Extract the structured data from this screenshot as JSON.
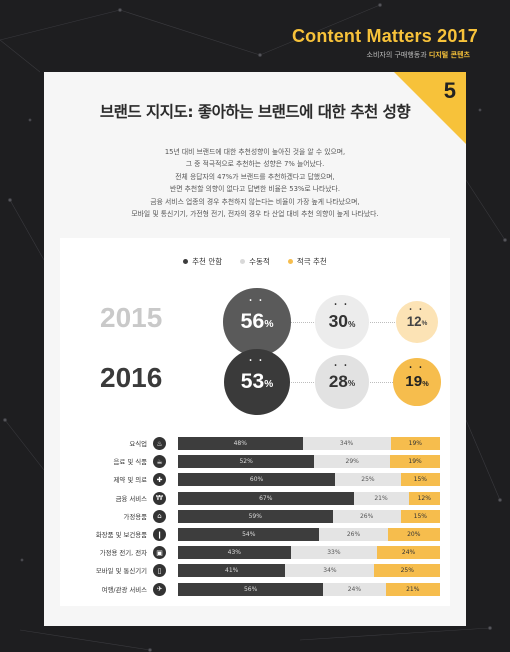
{
  "header": {
    "title": "Content Matters 2017",
    "subtitle_prefix": "소비자의 구매행동과",
    "subtitle_highlight": "디지털 콘텐츠"
  },
  "card": {
    "section_number": "5",
    "title": "브랜드 지지도: 좋아하는 브랜드에 대한 추천 성향",
    "description": [
      "15년 대비 브랜드에 대한 추천성향이 높아진 것을 알 수 있으며,",
      "그 중 적극적으로 추천하는 성향은 7% 늘어났다.",
      "전체 응답자의 47%가 브랜드를 추천하겠다고 답했으며,",
      "반면 추천할 의향이 없다고 답변한 비율은 53%로 나타났다.",
      "금융 서비스 업종의 경우 추천하지 않는다는 비율이 가장 높게 나타났으며,",
      "모바일 및 통신기기, 가전형 전기, 전자의 경우 타 산업 대비 추천 의향이 높게 나타났다."
    ]
  },
  "colors": {
    "dark": "#3d3d3d",
    "grey": "#e4e4e4",
    "yellow": "#f6bd4d",
    "background": "#1e1e20"
  },
  "chart_data": [
    {
      "type": "bubble",
      "legend": [
        "추천 안함",
        "수동적",
        "적극 추천"
      ],
      "legend_colors": [
        "#3d3d3d",
        "#d9d9d9",
        "#f6bd4d"
      ],
      "years": [
        {
          "year": "2015",
          "values": [
            56,
            30,
            12
          ]
        },
        {
          "year": "2016",
          "values": [
            53,
            28,
            19
          ]
        }
      ],
      "unit": "%"
    },
    {
      "type": "bar",
      "stacked": true,
      "series_names": [
        "추천 안함",
        "수동적",
        "적극 추천"
      ],
      "categories": [
        {
          "label": "요식업",
          "icon": "fork-knife-icon",
          "glyph": "♨",
          "values": [
            48,
            34,
            19
          ]
        },
        {
          "label": "음료 및 식품",
          "icon": "drink-icon",
          "glyph": "☕",
          "values": [
            52,
            29,
            19
          ]
        },
        {
          "label": "제약 및 의료",
          "icon": "medical-cross-icon",
          "glyph": "✚",
          "values": [
            60,
            25,
            15
          ]
        },
        {
          "label": "금융 서비스",
          "icon": "won-icon",
          "glyph": "₩",
          "values": [
            67,
            21,
            12
          ]
        },
        {
          "label": "가정용품",
          "icon": "home-icon",
          "glyph": "⌂",
          "values": [
            59,
            26,
            15
          ]
        },
        {
          "label": "화장품 및 보건용품",
          "icon": "lipstick-icon",
          "glyph": "❙",
          "values": [
            54,
            26,
            20
          ]
        },
        {
          "label": "가정용 전기, 전자",
          "icon": "appliance-icon",
          "glyph": "▣",
          "values": [
            43,
            33,
            24
          ]
        },
        {
          "label": "모바일 및 통신기기",
          "icon": "mobile-icon",
          "glyph": "▯",
          "values": [
            41,
            34,
            25
          ]
        },
        {
          "label": "여행/관광 서비스",
          "icon": "airplane-icon",
          "glyph": "✈",
          "values": [
            56,
            24,
            21
          ]
        }
      ],
      "unit": "%"
    }
  ]
}
